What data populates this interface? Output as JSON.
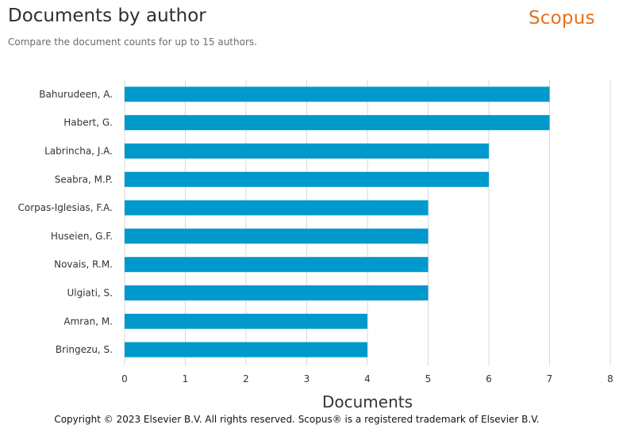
{
  "header": {
    "title": "Documents by author",
    "subtitle": "Compare the document counts for up to 15 authors.",
    "brand": "Scopus"
  },
  "footer": {
    "copyright": "Copyright © 2023 Elsevier B.V. All rights reserved. Scopus® is a registered trademark of Elsevier B.V."
  },
  "colors": {
    "bar": "#0099cc",
    "brand": "#e9711c",
    "grid": "#d9d9d9"
  },
  "chart_data": {
    "type": "bar",
    "orientation": "horizontal",
    "title": "Documents by author",
    "subtitle": "Compare the document counts for up to 15 authors.",
    "xlabel": "Documents",
    "ylabel": "",
    "categories": [
      "Bahurudeen, A.",
      "Habert, G.",
      "Labrincha, J.A.",
      "Seabra, M.P.",
      "Corpas-Iglesias, F.A.",
      "Huseien, G.F.",
      "Novais, R.M.",
      "Ulgiati, S.",
      "Amran, M.",
      "Bringezu, S."
    ],
    "values": [
      7,
      7,
      6,
      6,
      5,
      5,
      5,
      5,
      4,
      4
    ],
    "xlim": [
      0,
      8
    ],
    "xticks": [
      0,
      1,
      2,
      3,
      4,
      5,
      6,
      7,
      8
    ],
    "grid": true,
    "legend": "none"
  }
}
